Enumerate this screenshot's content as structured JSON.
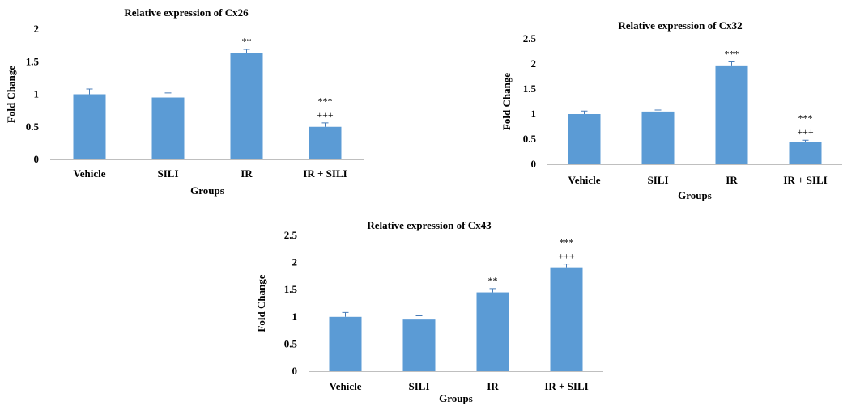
{
  "colors": {
    "bar": "#5b9bd5",
    "error": "#4a7db8"
  },
  "chart_data": [
    {
      "type": "bar",
      "title": "Relative expression of Cx26",
      "xlabel": "Groups",
      "ylabel": "Fold Change",
      "categories": [
        "Vehicle",
        "SILI",
        "IR",
        "IR + SILI"
      ],
      "values": [
        1.0,
        0.95,
        1.63,
        0.5
      ],
      "errors": [
        0.08,
        0.07,
        0.06,
        0.06
      ],
      "annotations": [
        [],
        [],
        [
          "**"
        ],
        [
          "***",
          "+++"
        ]
      ],
      "ylim": [
        0,
        2
      ],
      "yticks": [
        "0",
        "0.5",
        "1",
        "1.5",
        "2"
      ],
      "grid": false,
      "legend": "none"
    },
    {
      "type": "bar",
      "title": "Relative expression of Cx32",
      "xlabel": "Groups",
      "ylabel": "Fold Change",
      "categories": [
        "Vehicle",
        "SILI",
        "IR",
        "IR + SILI"
      ],
      "values": [
        1.0,
        1.05,
        1.97,
        0.44
      ],
      "errors": [
        0.06,
        0.03,
        0.07,
        0.04
      ],
      "annotations": [
        [],
        [],
        [
          "***"
        ],
        [
          "***",
          "+++"
        ]
      ],
      "ylim": [
        0,
        2.5
      ],
      "yticks": [
        "0",
        "0.5",
        "1",
        "1.5",
        "2",
        "2.5"
      ],
      "grid": false,
      "legend": "none"
    },
    {
      "type": "bar",
      "title": "Relative expression of Cx43",
      "xlabel": "Groups",
      "ylabel": "Fold Change",
      "categories": [
        "Vehicle",
        "SILI",
        "IR",
        "IR + SILI"
      ],
      "values": [
        1.0,
        0.95,
        1.45,
        1.91
      ],
      "errors": [
        0.08,
        0.07,
        0.07,
        0.06
      ],
      "annotations": [
        [],
        [],
        [
          "**"
        ],
        [
          "***",
          "+++"
        ]
      ],
      "ylim": [
        0,
        2.5
      ],
      "yticks": [
        "0",
        "0.5",
        "1",
        "1.5",
        "2",
        "2.5"
      ],
      "grid": false,
      "legend": "none"
    }
  ]
}
